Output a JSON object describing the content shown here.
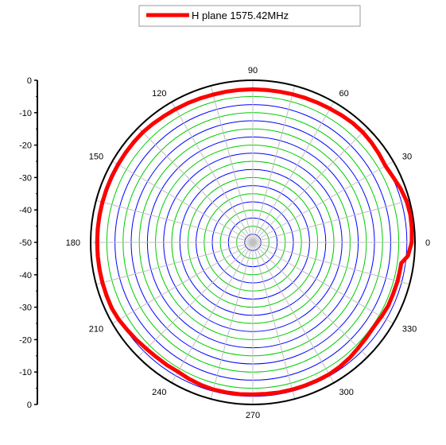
{
  "chart_data": {
    "type": "polar-line",
    "legend": {
      "label": "H plane  1575.42MHz",
      "position": "top-center"
    },
    "radial_axis": {
      "range": [
        -50,
        0
      ],
      "ticks": [
        0,
        -10,
        -20,
        -30,
        -40,
        -50,
        -40,
        -30,
        -20,
        -10,
        0
      ],
      "tick_labels": [
        "0",
        "-10",
        "-20",
        "-30",
        "-40",
        "-50",
        "-40",
        "-30",
        "-20",
        "-10",
        "0"
      ]
    },
    "angular_axis": {
      "tick_labels": [
        "0",
        "30",
        "60",
        "90",
        "120",
        "150",
        "180",
        "210",
        "240",
        "270",
        "300",
        "330"
      ],
      "label_angles_deg": [
        0,
        30,
        60,
        90,
        120,
        150,
        180,
        210,
        240,
        270,
        300,
        330
      ]
    },
    "grid": {
      "rings": [
        -2.5,
        -5,
        -7.5,
        -10,
        -12.5,
        -15,
        -17.5,
        -20,
        -22.5,
        -25,
        -27.5,
        -30,
        -32.5,
        -35,
        -37.5,
        -40,
        -42.5,
        -45,
        -47.5
      ],
      "ring_colors": [
        "blue",
        "green"
      ],
      "spokes_every_deg": 15
    },
    "colors": {
      "series": "#ff0000",
      "ring_blue": "#0000ff",
      "ring_green": "#00cc00",
      "spoke": "#c0c0c0",
      "outer_ring": "#000000"
    },
    "series": [
      {
        "name": "H plane  1575.42MHz",
        "angles_deg": [
          0,
          5,
          10,
          15,
          20,
          25,
          30,
          35,
          40,
          45,
          50,
          55,
          60,
          65,
          70,
          75,
          80,
          85,
          90,
          95,
          100,
          105,
          110,
          115,
          120,
          125,
          130,
          135,
          140,
          145,
          150,
          155,
          160,
          165,
          170,
          175,
          180,
          185,
          190,
          195,
          200,
          205,
          210,
          215,
          220,
          225,
          230,
          235,
          240,
          245,
          250,
          255,
          260,
          265,
          270,
          275,
          280,
          285,
          290,
          295,
          300,
          305,
          310,
          315,
          320,
          325,
          330,
          335,
          340,
          345,
          350,
          352,
          355
        ],
        "values_db": [
          -1.0,
          -0.8,
          -0.7,
          -0.9,
          -1.5,
          -2.3,
          -2.8,
          -2.5,
          -2.2,
          -2.0,
          -2.0,
          -2.2,
          -2.4,
          -2.5,
          -2.6,
          -2.7,
          -2.8,
          -2.8,
          -2.8,
          -2.8,
          -2.8,
          -2.8,
          -2.7,
          -2.6,
          -2.5,
          -2.4,
          -2.2,
          -2.0,
          -2.0,
          -2.0,
          -2.0,
          -2.0,
          -2.0,
          -2.0,
          -2.0,
          -2.0,
          -2.0,
          -2.0,
          -2.0,
          -2.0,
          -2.0,
          -2.0,
          -2.3,
          -2.8,
          -3.2,
          -3.6,
          -3.8,
          -3.8,
          -3.9,
          -3.5,
          -3.2,
          -3.0,
          -3.0,
          -3.0,
          -3.1,
          -3.1,
          -3.0,
          -3.0,
          -3.0,
          -3.0,
          -3.0,
          -3.2,
          -3.5,
          -4.0,
          -4.3,
          -4.5,
          -4.2,
          -3.9,
          -3.9,
          -3.8,
          -3.8,
          -3.8,
          -2.0
        ]
      }
    ]
  }
}
